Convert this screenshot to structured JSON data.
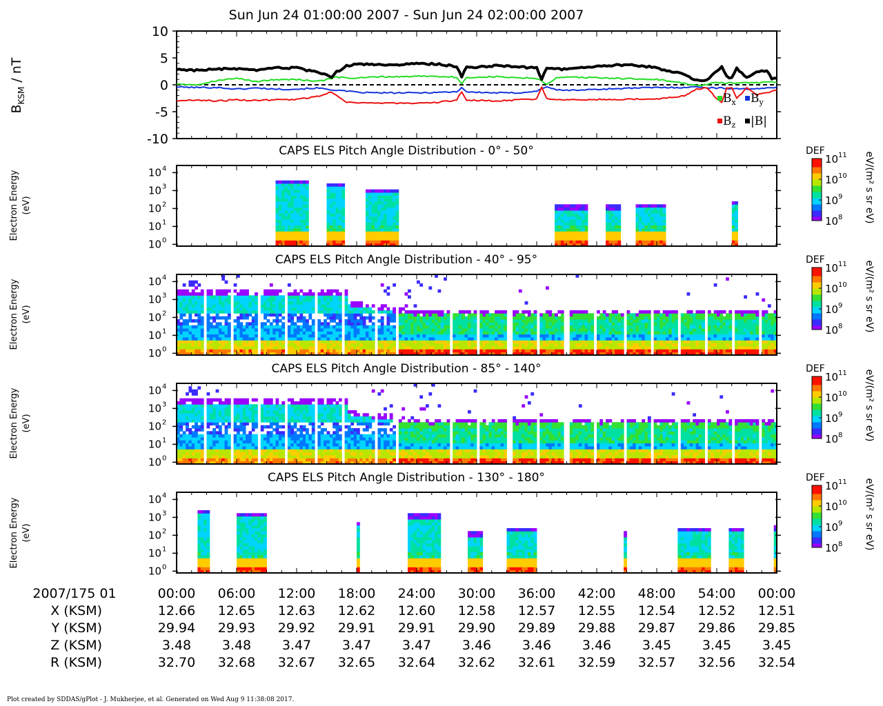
{
  "page": {
    "title": "Sun Jun 24 01:00:00 2007 - Sun Jun 24 02:00:00 2007",
    "footer": "Plot created by SDDAS/gPlot - J. Mukherjee, et al.  Generated on Wed Aug 9 11:38:08 2017."
  },
  "colors": {
    "bx": "#22dd22",
    "by": "#1133dd",
    "bz": "#ee1111",
    "bmag": "#000000",
    "colormap": [
      "#9900ff",
      "#3b2bff",
      "#0077ff",
      "#00d4ff",
      "#00e0a0",
      "#33e033",
      "#b8e600",
      "#ffcc00",
      "#ff7700",
      "#ff1100"
    ]
  },
  "chart_data": [
    {
      "type": "line",
      "ylabel": "B",
      "ylabel_sub": "KSM",
      "ylabel_unit": " / nT",
      "ylim": [
        -10,
        10
      ],
      "yticks": [
        "10",
        "5",
        "0",
        "-5",
        "-10"
      ],
      "ytick_values": [
        10,
        5,
        0,
        -5,
        -10
      ],
      "x_unit": "minutes after 01:00",
      "xlim": [
        0,
        60
      ],
      "zero_line": true,
      "legend": [
        {
          "key": "bx",
          "label": "B",
          "sub": "x"
        },
        {
          "key": "by",
          "label": "B",
          "sub": "y"
        },
        {
          "key": "bz",
          "label": "B",
          "sub": "z"
        },
        {
          "key": "bmag",
          "label": "|B|",
          "sub": ""
        }
      ],
      "series": [
        {
          "key": "bmag",
          "name": "|B|",
          "x": [
            0,
            2,
            4,
            6,
            8,
            10,
            12,
            14,
            15.5,
            16,
            17,
            18,
            20,
            22,
            24,
            26,
            28,
            28.5,
            29,
            30,
            32,
            34,
            36,
            36.5,
            37,
            38,
            40,
            42,
            44,
            46,
            48,
            49,
            50,
            51,
            52,
            52.5,
            53,
            54,
            54.5,
            55,
            55.5,
            56,
            57,
            58,
            59,
            59.5,
            60
          ],
          "values": [
            2.9,
            2.7,
            2.9,
            3.0,
            2.6,
            3.2,
            3.1,
            2.3,
            1.5,
            2.4,
            3.5,
            3.8,
            3.8,
            3.7,
            3.9,
            3.9,
            3.4,
            1.5,
            3.3,
            3.3,
            3.6,
            3.4,
            3.1,
            1.1,
            3.0,
            2.9,
            3.0,
            3.4,
            3.7,
            3.6,
            3.2,
            2.6,
            2.4,
            1.7,
            0.8,
            0.7,
            1.0,
            2.4,
            3.5,
            1.5,
            1.3,
            3.0,
            1.3,
            2.4,
            2.6,
            1.2,
            1.2
          ]
        },
        {
          "key": "bx",
          "name": "Bx",
          "x": [
            0,
            2,
            4,
            6,
            8,
            10,
            12,
            14,
            16,
            18,
            20,
            22,
            24,
            26,
            28,
            28.5,
            29,
            30,
            32,
            34,
            36,
            37,
            38,
            40,
            44,
            48,
            50,
            52,
            54,
            56,
            58,
            60
          ],
          "values": [
            0.2,
            0.0,
            0.8,
            1.2,
            0.6,
            1.0,
            1.0,
            0.6,
            1.4,
            1.2,
            1.5,
            1.5,
            1.6,
            1.6,
            1.4,
            0.2,
            1.3,
            1.4,
            1.5,
            1.3,
            1.2,
            0.0,
            1.3,
            1.4,
            1.2,
            1.0,
            0.5,
            -0.2,
            0.4,
            0.3,
            0.4,
            0.5
          ]
        },
        {
          "key": "by",
          "name": "By",
          "x": [
            0,
            2,
            4,
            6,
            8,
            10,
            12,
            14,
            16,
            18,
            20,
            22,
            24,
            26,
            28,
            28.5,
            29,
            30,
            32,
            34,
            36,
            37,
            38,
            40,
            44,
            48,
            50,
            52,
            54,
            56,
            58,
            60
          ],
          "values": [
            -0.4,
            -0.5,
            -0.5,
            -0.8,
            -0.6,
            -0.8,
            -0.8,
            -0.6,
            -1.0,
            -1.4,
            -1.5,
            -1.5,
            -1.5,
            -1.4,
            -1.3,
            -0.5,
            -1.3,
            -1.4,
            -1.5,
            -1.5,
            -1.2,
            -0.3,
            -1.0,
            -1.0,
            -0.7,
            -0.5,
            -0.5,
            -0.4,
            -0.6,
            -0.7,
            -0.8,
            -0.4
          ]
        },
        {
          "key": "bz",
          "name": "Bz",
          "x": [
            0,
            2,
            4,
            6,
            8,
            10,
            12,
            14,
            15.5,
            16,
            17,
            18,
            20,
            22,
            24,
            26,
            28,
            28.5,
            29,
            30,
            32,
            34,
            36,
            36.5,
            37,
            38,
            40,
            44,
            48,
            50,
            51,
            52,
            53,
            54,
            54.5,
            55,
            55.5,
            56,
            57,
            58,
            59,
            60
          ],
          "values": [
            -3.0,
            -2.8,
            -3.0,
            -2.8,
            -2.9,
            -2.8,
            -2.7,
            -2.2,
            -1.3,
            -2.0,
            -3.2,
            -3.3,
            -3.4,
            -3.4,
            -3.5,
            -3.3,
            -2.8,
            -1.3,
            -2.8,
            -2.9,
            -3.0,
            -2.8,
            -2.6,
            -0.4,
            -2.5,
            -2.7,
            -2.8,
            -2.7,
            -2.6,
            -2.3,
            -1.9,
            -0.8,
            -0.5,
            -2.6,
            -3.2,
            -0.6,
            -0.4,
            -2.6,
            -0.5,
            -1.9,
            -1.5,
            -1.0
          ]
        }
      ]
    },
    {
      "type": "heatmap",
      "title": "CAPS ELS Pitch Angle Distribution - 0° - 50°",
      "ylabel": "Electron Energy",
      "ylabel2": "(eV)",
      "colorbar_label": "DEF",
      "colorbar_unit": "eV/(m² s sr eV)",
      "colorbar_range_log10": [
        8,
        11
      ],
      "xlim": [
        0,
        60
      ],
      "ylim_log10_eV": [
        -0.1,
        4.4
      ],
      "mode": "sparse",
      "blocks": [
        [
          9.8,
          13.3,
          3.6
        ],
        [
          15.0,
          16.8,
          3.4
        ],
        [
          19.0,
          22.3,
          3.1
        ],
        [
          37.8,
          41.0,
          2.2
        ],
        [
          42.8,
          44.5,
          2.2
        ],
        [
          46.0,
          49.0,
          2.3
        ],
        [
          55.5,
          56.0,
          2.4
        ]
      ]
    },
    {
      "type": "heatmap",
      "title": "CAPS ELS Pitch Angle Distribution - 40° - 95°",
      "ylabel": "Electron Energy",
      "ylabel2": "(eV)",
      "colorbar_label": "DEF",
      "colorbar_unit": "eV/(m² s sr eV)",
      "colorbar_range_log10": [
        8,
        11
      ],
      "xlim": [
        0,
        60
      ],
      "ylim_log10_eV": [
        -0.1,
        4.4
      ],
      "mode": "dense"
    },
    {
      "type": "heatmap",
      "title": "CAPS ELS Pitch Angle Distribution - 85° - 140°",
      "ylabel": "Electron Energy",
      "ylabel2": "(eV)",
      "colorbar_label": "DEF",
      "colorbar_unit": "eV/(m² s sr eV)",
      "colorbar_range_log10": [
        8,
        11
      ],
      "xlim": [
        0,
        60
      ],
      "ylim_log10_eV": [
        -0.1,
        4.4
      ],
      "mode": "dense"
    },
    {
      "type": "heatmap",
      "title": "CAPS ELS Pitch Angle Distribution - 130° - 180°",
      "ylabel": "Electron Energy",
      "ylabel2": "(eV)",
      "colorbar_label": "DEF",
      "colorbar_unit": "eV/(m² s sr eV)",
      "colorbar_range_log10": [
        8,
        11
      ],
      "xlim": [
        0,
        60
      ],
      "ylim_log10_eV": [
        -0.1,
        4.4
      ],
      "mode": "sparse",
      "blocks": [
        [
          2.0,
          3.3,
          3.4
        ],
        [
          6.0,
          9.0,
          3.3
        ],
        [
          18.0,
          18.3,
          2.8
        ],
        [
          23.0,
          26.5,
          3.2
        ],
        [
          29.2,
          30.5,
          2.2
        ],
        [
          33.0,
          36.0,
          2.4
        ],
        [
          44.8,
          45.0,
          2.2
        ],
        [
          50.2,
          53.5,
          2.4
        ],
        [
          55.3,
          56.8,
          2.4
        ],
        [
          59.6,
          60.0,
          2.5
        ]
      ]
    }
  ],
  "energy_ticks": [
    {
      "base": "10",
      "exp": "4",
      "log": 4
    },
    {
      "base": "10",
      "exp": "3",
      "log": 3
    },
    {
      "base": "10",
      "exp": "2",
      "log": 2
    },
    {
      "base": "10",
      "exp": "1",
      "log": 1
    },
    {
      "base": "10",
      "exp": "0",
      "log": 0
    }
  ],
  "colorbar_ticks": [
    {
      "base": "10",
      "exp": "11",
      "log": 11
    },
    {
      "base": "10",
      "exp": "10",
      "log": 10
    },
    {
      "base": "10",
      "exp": "9",
      "log": 9
    },
    {
      "base": "10",
      "exp": "8",
      "log": 8
    }
  ],
  "xaxis": {
    "row_labels": [
      "2007/175 01",
      "X (KSM)",
      "Y (KSM)",
      "Z (KSM)",
      "R (KSM)"
    ],
    "tick_minutes": [
      0,
      6,
      12,
      18,
      24,
      30,
      36,
      42,
      48,
      54,
      60
    ],
    "times": [
      "00:00",
      "06:00",
      "12:00",
      "18:00",
      "24:00",
      "30:00",
      "36:00",
      "42:00",
      "48:00",
      "54:00",
      "00:00"
    ],
    "X": [
      "12.66",
      "12.65",
      "12.63",
      "12.62",
      "12.60",
      "12.58",
      "12.57",
      "12.55",
      "12.54",
      "12.52",
      "12.51"
    ],
    "Y": [
      "29.94",
      "29.93",
      "29.92",
      "29.91",
      "29.91",
      "29.90",
      "29.89",
      "29.88",
      "29.87",
      "29.86",
      "29.85"
    ],
    "Z": [
      "3.48",
      "3.48",
      "3.47",
      "3.47",
      "3.47",
      "3.46",
      "3.46",
      "3.46",
      "3.45",
      "3.45",
      "3.45"
    ],
    "R": [
      "32.70",
      "32.68",
      "32.67",
      "32.65",
      "32.64",
      "32.62",
      "32.61",
      "32.59",
      "32.57",
      "32.56",
      "32.54"
    ]
  }
}
